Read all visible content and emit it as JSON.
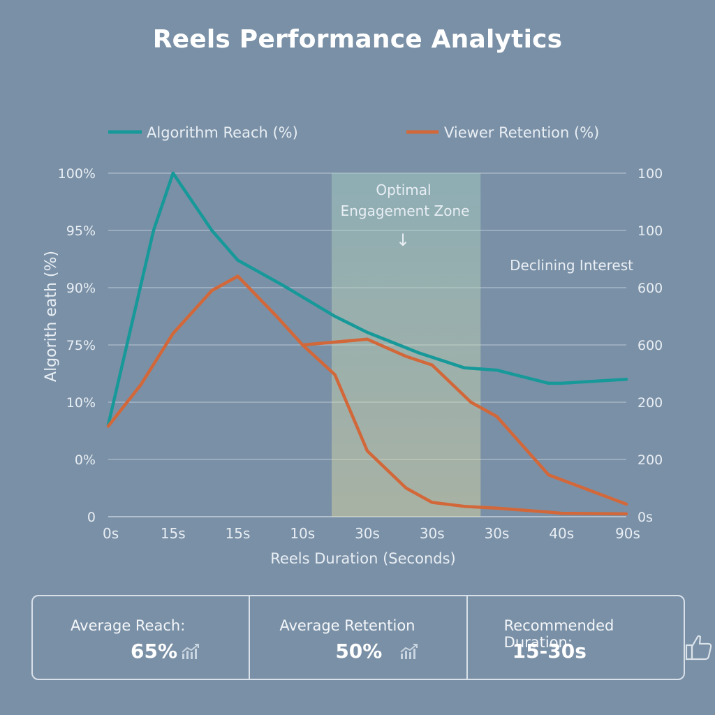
{
  "title": "Reels Performance Analytics",
  "colors": {
    "reach": "#17999a",
    "retention": "#d2683a",
    "zone": "#e8e0a0"
  },
  "chart_data": {
    "type": "line",
    "title": "Reels Performance Analytics",
    "xlabel": "Reels Duration (Seconds)",
    "ylabel": "Algorith eath (%)",
    "x_ticks": [
      "0s",
      "15s",
      "15s",
      "10s",
      "30s",
      "30s",
      "30s",
      "40s",
      "90s"
    ],
    "y_left_ticks": [
      "100%",
      "95%",
      "90%",
      "75%",
      "10%",
      "0%",
      "0"
    ],
    "y_right_ticks": [
      "100",
      "100",
      "600",
      "600",
      "200",
      "200",
      "0s"
    ],
    "x_range": [
      0,
      8
    ],
    "y_range": [
      0,
      6
    ],
    "grid": true,
    "legend_position": "top",
    "series": [
      {
        "name": "Algorithm Reach (%)",
        "x": [
          0,
          0.7,
          1.0,
          1.6,
          2.0,
          2.7,
          3.5,
          4.0,
          4.8,
          5.5,
          6.0,
          6.8,
          7.0,
          8.0
        ],
        "values": [
          1.6,
          5.0,
          6.0,
          5.0,
          4.48,
          4.04,
          3.5,
          3.22,
          2.86,
          2.6,
          2.56,
          2.33,
          2.33,
          2.4
        ]
      },
      {
        "name": "Viewer Retention (%)",
        "x": [
          0,
          0.5,
          1.0,
          1.6,
          2.0,
          2.6,
          3.0,
          3.5,
          4.0,
          4.6,
          5.0,
          5.5,
          6.0,
          6.8,
          7.0,
          8.0
        ],
        "values": [
          1.58,
          2.3,
          3.2,
          3.95,
          4.2,
          3.5,
          3.0,
          2.48,
          1.15,
          0.5,
          0.25,
          0.18,
          0.15,
          0.08,
          0.06,
          0.05
        ]
      },
      {
        "name": "",
        "x": [
          3.0,
          4.0,
          4.6,
          5.0,
          5.6,
          6.0,
          6.8,
          8.0
        ],
        "values": [
          3.0,
          3.1,
          2.8,
          2.65,
          2.0,
          1.75,
          0.73,
          0.22
        ]
      }
    ],
    "annotations": [
      {
        "text": "Optimal",
        "region": [
          3.45,
          5.75
        ]
      },
      {
        "text": "Engagement Zone"
      },
      {
        "text": "↓"
      },
      {
        "text": "Declining Interest"
      }
    ]
  },
  "stats": [
    {
      "label": "Average Reach:",
      "value": "65%",
      "icon": "trend-up-icon"
    },
    {
      "label": "Average Retention",
      "value": "50%",
      "icon": "trend-up-icon"
    },
    {
      "label": "Recommended Duration:",
      "value": "15-30s",
      "icon": "thumbs-up-icon"
    }
  ]
}
